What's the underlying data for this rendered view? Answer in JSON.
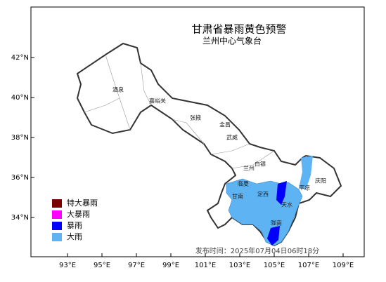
{
  "map": {
    "title": "甘肃省暴雨黄色预警",
    "subtitle": "兰州中心气象台",
    "lat_ticks": [
      {
        "value": 42,
        "label": "42°N"
      },
      {
        "value": 40,
        "label": "40°N"
      },
      {
        "value": 38,
        "label": "38°N"
      },
      {
        "value": 36,
        "label": "36°N"
      },
      {
        "value": 34,
        "label": "34°N"
      }
    ],
    "lon_ticks": [
      {
        "value": 93,
        "label": "93°E"
      },
      {
        "value": 95,
        "label": "95°E"
      },
      {
        "value": 97,
        "label": "97°E"
      },
      {
        "value": 99,
        "label": "99°E"
      },
      {
        "value": 101,
        "label": "101°E"
      },
      {
        "value": 103,
        "label": "103°E"
      },
      {
        "value": 105,
        "label": "105°E"
      },
      {
        "value": 107,
        "label": "107°E"
      },
      {
        "value": 109,
        "label": "109°E"
      }
    ],
    "legend": [
      {
        "name": "特大暴雨",
        "color": "#7b0000"
      },
      {
        "name": "大暴雨",
        "color": "#ff00ff"
      },
      {
        "name": "暴雨",
        "color": "#0000ff"
      },
      {
        "name": "大雨",
        "color": "#5eb3f2"
      }
    ],
    "cities": [
      "酒泉",
      "嘉峪关",
      "张掖",
      "金昌",
      "武威",
      "白银",
      "兰州",
      "临夏",
      "定西",
      "甘南",
      "天水",
      "陇南",
      "平凉",
      "庆阳"
    ],
    "release_time": "发布时间：2025年07月04日06时18分"
  }
}
